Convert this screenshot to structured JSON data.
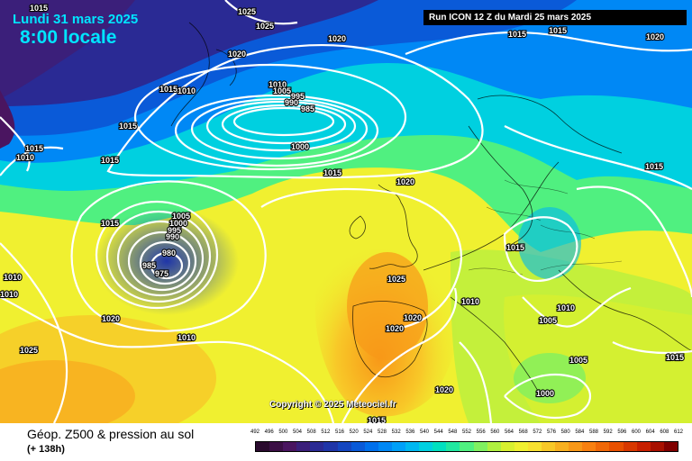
{
  "header": {
    "date": "Lundi 31 mars 2025",
    "time": "8:00 locale",
    "run": "Run ICON 12 Z du Mardi 25 mars 2025"
  },
  "copyright": "Copyright © 2025 Meteociel.fr",
  "footer": {
    "title": "Géop. Z500 & pression au sol",
    "subtitle": "(+ 138h)"
  },
  "scale": {
    "ticks": [
      "492",
      "496",
      "500",
      "504",
      "508",
      "512",
      "516",
      "520",
      "524",
      "528",
      "532",
      "536",
      "540",
      "544",
      "548",
      "552",
      "556",
      "560",
      "564",
      "568",
      "572",
      "576",
      "580",
      "584",
      "588",
      "592",
      "596",
      "600",
      "604",
      "608",
      "612"
    ],
    "colors": [
      "#2a0a2e",
      "#3b0f45",
      "#4a1560",
      "#3b1f7a",
      "#2a2a94",
      "#1f35a8",
      "#1446c0",
      "#0a5ad8",
      "#0070ec",
      "#0088f5",
      "#00a0f8",
      "#00b8f0",
      "#00d0e0",
      "#00e0c0",
      "#20e8a0",
      "#50f080",
      "#80f060",
      "#b0f040",
      "#d8f030",
      "#f0f030",
      "#f8e030",
      "#f8c828",
      "#f8b020",
      "#f89818",
      "#f88010",
      "#f06808",
      "#e85000",
      "#d83800",
      "#c82000",
      "#a81000",
      "#800000"
    ]
  },
  "isobars": [
    "1025",
    "1025",
    "1020",
    "1020",
    "1015",
    "1015",
    "1015",
    "1020",
    "1015",
    "1010",
    "1010",
    "1005",
    "995",
    "990",
    "985",
    "1000",
    "1015",
    "1010",
    "1015",
    "1015",
    "1020",
    "1015",
    "1005",
    "1000",
    "995",
    "990",
    "980",
    "985",
    "975",
    "1015",
    "1010",
    "1020",
    "1025",
    "1010",
    "1020",
    "1020",
    "1015",
    "1005",
    "1010",
    "1000",
    "1005",
    "1015",
    "1010",
    "1015",
    "1020",
    "1025",
    "1015"
  ],
  "isobar_partial": [
    "1015",
    "1010"
  ]
}
